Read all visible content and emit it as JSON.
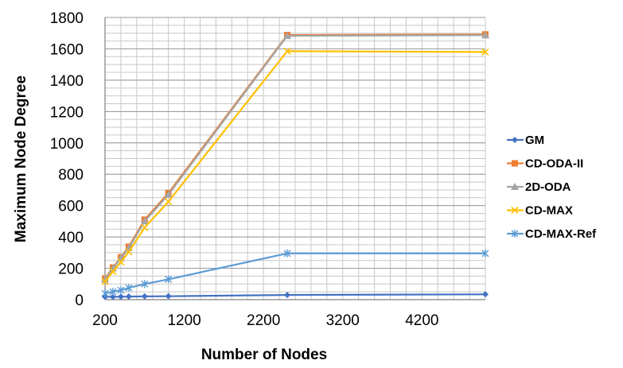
{
  "chart_data": {
    "type": "line",
    "xlabel": "Number of Nodes",
    "ylabel": "Maximum Node Degree",
    "xlim": [
      200,
      5000
    ],
    "ylim": [
      0,
      1800
    ],
    "x_ticks": [
      200,
      1200,
      2200,
      3200,
      4200
    ],
    "y_ticks": [
      0,
      200,
      400,
      600,
      800,
      1000,
      1200,
      1400,
      1600,
      1800
    ],
    "grid": true,
    "legend_position": "right",
    "series": [
      {
        "name": "GM",
        "color": "#4472C4",
        "marker": "diamond",
        "points": [
          [
            200,
            18
          ],
          [
            300,
            18
          ],
          [
            400,
            19
          ],
          [
            500,
            20
          ],
          [
            700,
            21
          ],
          [
            1000,
            22
          ],
          [
            2500,
            30
          ],
          [
            5000,
            34
          ]
        ]
      },
      {
        "name": "CD-ODA-II",
        "color": "#ED7D31",
        "marker": "square",
        "points": [
          [
            200,
            135
          ],
          [
            300,
            205
          ],
          [
            400,
            270
          ],
          [
            500,
            338
          ],
          [
            700,
            510
          ],
          [
            1000,
            680
          ],
          [
            2500,
            1688
          ],
          [
            5000,
            1692
          ]
        ]
      },
      {
        "name": "2D-ODA",
        "color": "#A5A5A5",
        "marker": "triangle",
        "points": [
          [
            200,
            130
          ],
          [
            300,
            200
          ],
          [
            400,
            265
          ],
          [
            500,
            330
          ],
          [
            700,
            500
          ],
          [
            1000,
            670
          ],
          [
            2500,
            1683
          ],
          [
            5000,
            1687
          ]
        ]
      },
      {
        "name": "CD-MAX",
        "color": "#FFC000",
        "marker": "x",
        "points": [
          [
            200,
            115
          ],
          [
            300,
            180
          ],
          [
            400,
            240
          ],
          [
            500,
            305
          ],
          [
            700,
            460
          ],
          [
            1000,
            625
          ],
          [
            2500,
            1585
          ],
          [
            5000,
            1580
          ]
        ]
      },
      {
        "name": "CD-MAX-Ref",
        "color": "#5B9BD5",
        "marker": "asterisk",
        "points": [
          [
            200,
            40
          ],
          [
            300,
            50
          ],
          [
            400,
            60
          ],
          [
            500,
            75
          ],
          [
            700,
            100
          ],
          [
            1000,
            130
          ],
          [
            2500,
            295
          ],
          [
            5000,
            295
          ]
        ]
      }
    ]
  }
}
